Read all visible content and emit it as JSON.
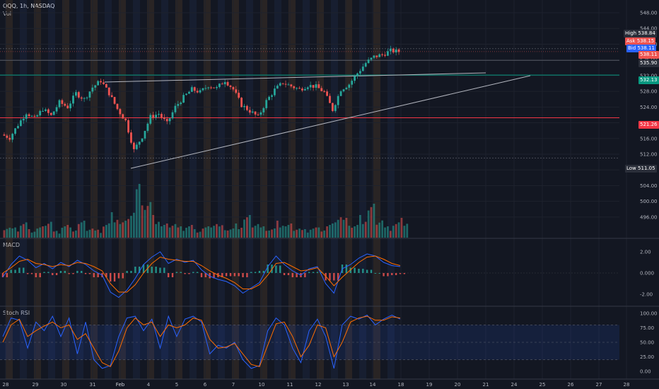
{
  "header": {
    "title": "QQQ, 1h, NASDAQ",
    "vol_label": "Vol"
  },
  "panes": {
    "macd_label": "MACD",
    "stoch_label": "Stoch RSI"
  },
  "price_tags": {
    "high": {
      "label": "High",
      "value": "538.84"
    },
    "ask": {
      "label": "Ask",
      "value": "538.15"
    },
    "bid": {
      "label": "Bid",
      "value": "538.11"
    },
    "last": "538.11",
    "level_1": "535.90",
    "level_2": "532.13",
    "level_3": "521.26",
    "low": {
      "label": "Low",
      "value": "511.05"
    }
  },
  "colors": {
    "up": "#26a69a",
    "down": "#ef5350",
    "line_blue": "#2962ff",
    "line_orange": "#ff6d00",
    "background": "#131722",
    "grid": "#1e222d",
    "teal_level": "#089981",
    "red_level": "#f23645"
  },
  "chart_data": [
    {
      "type": "candlestick",
      "title": "QQQ, 1h, NASDAQ",
      "ylim": [
        494,
        549
      ],
      "y_ticks": [
        "548.00",
        "544.00",
        "540.00",
        "536.00",
        "532.00",
        "528.00",
        "524.00",
        "520.00",
        "516.00",
        "512.00",
        "508.00",
        "504.00",
        "500.00",
        "496.00"
      ],
      "x_ticks": [
        "28",
        "29",
        "30",
        "31",
        "Feb",
        "4",
        "5",
        "6",
        "7",
        "10",
        "11",
        "12",
        "13",
        "14",
        "18",
        "19",
        "20",
        "21",
        "24",
        "25",
        "26",
        "27",
        "28"
      ],
      "price_path": [
        517,
        516.2,
        519.5,
        522.6,
        521,
        523.5,
        521.8,
        525.2,
        524,
        527.5,
        526,
        529,
        530.7,
        527.5,
        523.5,
        520.5,
        513,
        516.5,
        521.5,
        522.3,
        519.8,
        524,
        526.5,
        528.5,
        527.8,
        529.5,
        528.8,
        530.8,
        528.5,
        524.5,
        523,
        521.5,
        525.5,
        528.4,
        530.2,
        529.3,
        528.5,
        529.5,
        529.2,
        527.8,
        523.3,
        528.5,
        529.8,
        532.6,
        535.2,
        536.8,
        537.3,
        538.3,
        538.1
      ],
      "levels": [
        535.9,
        532.13,
        521.26
      ],
      "high": 538.84,
      "low": 511.05
    },
    {
      "type": "bar",
      "title": "Vol",
      "values": [
        0.22,
        0.18,
        0.3,
        0.15,
        0.2,
        0.35,
        0.12,
        0.25,
        0.18,
        0.3,
        0.2,
        0.14,
        0.28,
        0.45,
        0.3,
        0.55,
        0.95,
        0.7,
        0.4,
        0.25,
        0.3,
        0.2,
        0.25,
        0.15,
        0.2,
        0.3,
        0.22,
        0.18,
        0.25,
        0.4,
        0.3,
        0.2,
        0.18,
        0.3,
        0.25,
        0.2,
        0.15,
        0.2,
        0.18,
        0.25,
        0.45,
        0.35,
        0.25,
        0.4,
        0.6,
        0.38,
        0.2,
        0.3,
        0.35
      ]
    },
    {
      "type": "line",
      "title": "MACD",
      "ylim": [
        -2.6,
        2.6
      ],
      "y_ticks": [
        "2.00",
        "0.000",
        "-2.00"
      ],
      "macd": [
        -0.4,
        0.8,
        1.6,
        1.2,
        0.5,
        0.9,
        0.4,
        1.0,
        0.6,
        1.2,
        0.8,
        0.2,
        -0.2,
        -1.8,
        -2.3,
        -1.6,
        -0.5,
        0.8,
        1.5,
        2.0,
        0.9,
        1.3,
        1.0,
        1.2,
        0.3,
        -0.3,
        -0.6,
        -0.8,
        -1.2,
        -1.9,
        -1.4,
        -0.9,
        0.6,
        1.6,
        0.8,
        0.2,
        -0.2,
        0.4,
        0.6,
        -1.0,
        -1.9,
        0.4,
        0.8,
        1.4,
        1.8,
        1.6,
        1.0,
        0.7,
        0.6
      ],
      "signal": [
        0,
        0.5,
        1.1,
        1.3,
        0.9,
        0.8,
        0.6,
        0.8,
        0.7,
        1.0,
        0.9,
        0.6,
        0.2,
        -1.0,
        -1.8,
        -1.8,
        -1.1,
        0.0,
        0.9,
        1.5,
        1.3,
        1.2,
        1.1,
        1.1,
        0.7,
        0.2,
        -0.2,
        -0.5,
        -0.9,
        -1.5,
        -1.5,
        -1.1,
        -0.2,
        0.9,
        1.0,
        0.6,
        0.2,
        0.3,
        0.5,
        -0.3,
        -1.2,
        -0.4,
        0.3,
        1.0,
        1.5,
        1.6,
        1.3,
        0.9,
        0.7
      ]
    },
    {
      "type": "line",
      "title": "Stoch RSI",
      "ylim": [
        -8,
        106
      ],
      "y_ticks": [
        "100.00",
        "75.00",
        "50.00",
        "25.00",
        "0.00"
      ],
      "bands": [
        20,
        50,
        80
      ],
      "k": [
        60,
        92,
        88,
        40,
        85,
        70,
        95,
        60,
        92,
        30,
        85,
        20,
        5,
        10,
        60,
        92,
        95,
        70,
        90,
        40,
        95,
        60,
        90,
        95,
        85,
        30,
        45,
        40,
        50,
        20,
        5,
        10,
        70,
        92,
        80,
        40,
        15,
        70,
        90,
        60,
        5,
        80,
        95,
        90,
        97,
        80,
        90,
        97,
        90
      ],
      "d": [
        50,
        80,
        90,
        60,
        70,
        78,
        85,
        75,
        80,
        55,
        65,
        40,
        15,
        8,
        35,
        75,
        92,
        80,
        85,
        60,
        80,
        75,
        80,
        92,
        88,
        55,
        40,
        42,
        48,
        30,
        12,
        8,
        45,
        82,
        85,
        60,
        25,
        45,
        80,
        75,
        25,
        50,
        85,
        92,
        95,
        88,
        88,
        94,
        92
      ]
    }
  ]
}
